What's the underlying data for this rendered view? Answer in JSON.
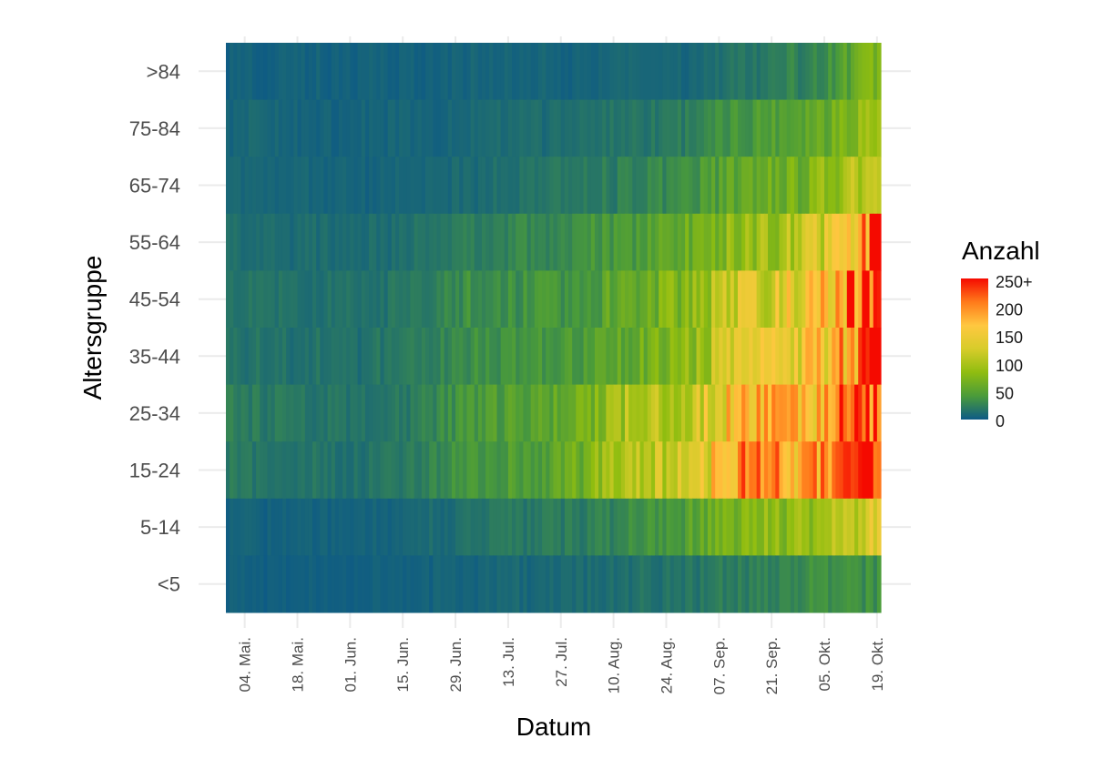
{
  "chart_data": {
    "type": "heatmap",
    "title": "",
    "xlabel": "Datum",
    "ylabel": "Altersgruppe",
    "x_start": "2020-04-29",
    "x_end": "2020-10-20",
    "x_ticks": [
      "04. Mai.",
      "18. Mai.",
      "01. Jun.",
      "15. Jun.",
      "29. Jun.",
      "13. Jul.",
      "27. Jul.",
      "10. Aug.",
      "24. Aug.",
      "07. Sep.",
      "21. Sep.",
      "05. Okt.",
      "19. Okt."
    ],
    "y_categories": [
      ">84",
      "75-84",
      "65-74",
      "55-64",
      "45-54",
      "35-44",
      "25-34",
      "15-24",
      "5-14",
      "<5"
    ],
    "grid": true,
    "legend": {
      "title": "Anzahl",
      "position": "right",
      "labels": [
        "250+",
        "200",
        "150",
        "100",
        "50",
        "0"
      ],
      "range": [
        0,
        250
      ],
      "gradient": [
        "#0d5a86",
        "#4a9b3a",
        "#8fbd10",
        "#d7cc2a",
        "#ffc840",
        "#ff7a1a",
        "#f50a00"
      ]
    },
    "series_approx": {
      "note_values_are_weekly_mean_counts_per_group_estimated": "",
      "weeks": [
        "04. Mai.",
        "11. Mai.",
        "18. Mai.",
        "25. Mai.",
        "01. Jun.",
        "08. Jun.",
        "15. Jun.",
        "22. Jun.",
        "29. Jun.",
        "06. Jul.",
        "13. Jul.",
        "20. Jul.",
        "27. Jul.",
        "03. Aug.",
        "10. Aug.",
        "17. Aug.",
        "24. Aug.",
        "31. Aug.",
        "07. Sep.",
        "14. Sep.",
        "21. Sep.",
        "28. Sep.",
        "05. Okt.",
        "12. Okt.",
        "19. Okt."
      ],
      "values": {
        ">84": [
          6,
          5,
          5,
          5,
          5,
          5,
          5,
          5,
          5,
          6,
          6,
          6,
          6,
          6,
          7,
          7,
          8,
          9,
          14,
          18,
          22,
          26,
          34,
          60,
          75
        ],
        "75-84": [
          8,
          8,
          7,
          7,
          7,
          7,
          7,
          7,
          8,
          9,
          11,
          12,
          13,
          14,
          16,
          18,
          20,
          24,
          32,
          40,
          48,
          56,
          66,
          85,
          100
        ],
        "65-74": [
          8,
          8,
          7,
          7,
          7,
          7,
          7,
          7,
          9,
          12,
          14,
          16,
          18,
          20,
          22,
          26,
          30,
          36,
          48,
          56,
          62,
          70,
          82,
          100,
          110
        ],
        "55-64": [
          14,
          12,
          11,
          11,
          11,
          11,
          12,
          14,
          18,
          24,
          26,
          28,
          30,
          34,
          38,
          44,
          52,
          62,
          80,
          88,
          94,
          104,
          130,
          170,
          230
        ],
        "45-54": [
          18,
          16,
          15,
          15,
          15,
          15,
          16,
          20,
          26,
          34,
          34,
          36,
          38,
          44,
          52,
          62,
          72,
          82,
          110,
          125,
          132,
          140,
          165,
          210,
          255
        ],
        "35-44": [
          18,
          16,
          15,
          15,
          15,
          15,
          17,
          20,
          26,
          34,
          34,
          36,
          38,
          44,
          52,
          62,
          72,
          82,
          110,
          125,
          132,
          140,
          160,
          205,
          250
        ],
        "25-34": [
          22,
          20,
          18,
          18,
          18,
          18,
          20,
          24,
          32,
          42,
          44,
          48,
          54,
          62,
          90,
          100,
          105,
          112,
          150,
          190,
          175,
          165,
          190,
          215,
          245
        ],
        "15-24": [
          20,
          18,
          16,
          16,
          16,
          16,
          18,
          22,
          30,
          40,
          42,
          46,
          52,
          62,
          95,
          108,
          112,
          120,
          165,
          215,
          185,
          175,
          205,
          225,
          250
        ],
        "5-14": [
          5,
          5,
          5,
          5,
          5,
          6,
          7,
          9,
          12,
          16,
          18,
          20,
          22,
          24,
          28,
          34,
          40,
          50,
          70,
          78,
          84,
          90,
          100,
          115,
          125
        ],
        "<5": [
          4,
          4,
          4,
          4,
          4,
          4,
          4,
          5,
          6,
          7,
          8,
          9,
          10,
          11,
          12,
          14,
          16,
          18,
          22,
          26,
          28,
          30,
          32,
          34,
          36
        ]
      }
    }
  }
}
